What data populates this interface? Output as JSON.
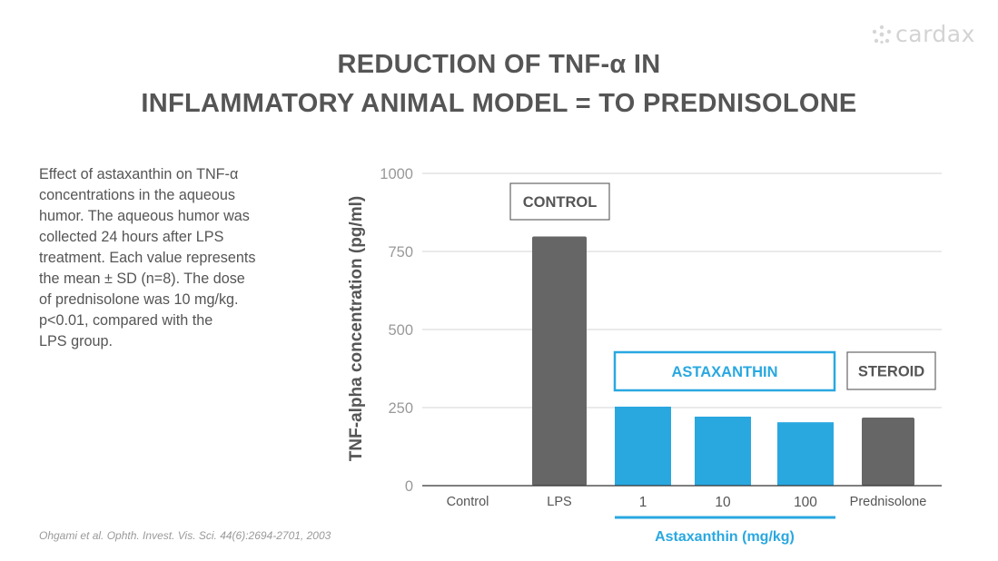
{
  "logo": {
    "text": "cardax"
  },
  "title": {
    "line1": "REDUCTION OF TNF-α IN",
    "line2": "INFLAMMATORY ANIMAL MODEL = TO PREDNISOLONE"
  },
  "description": [
    "Effect of astaxanthin on TNF-α",
    "concentrations in the aqueous",
    "humor. The aqueous humor was",
    "collected 24 hours after LPS",
    "treatment. Each value represents",
    "the mean ± SD (n=8). The dose",
    "of prednisolone was 10 mg/kg.",
    "p<0.01, compared with the",
    "LPS group."
  ],
  "citation": "Ohgami et al. Ophth. Invest. Vis. Sci. 44(6):2694-2701, 2003",
  "colors": {
    "gray": "#666666",
    "blue": "#29a8e0",
    "text": "#555555",
    "grid": "#dddddd"
  },
  "chart_data": {
    "type": "bar",
    "title": "",
    "ylabel": "TNF-alpha concentration (pg/ml)",
    "xlabel": "Astaxanthin (mg/kg)",
    "ylim": [
      0,
      1000
    ],
    "yticks": [
      "0",
      "250",
      "500",
      "750",
      "1000"
    ],
    "ytick_values": [
      0,
      250,
      500,
      750,
      1000
    ],
    "grid": true,
    "categories": [
      "Control",
      "LPS",
      "1",
      "10",
      "100",
      "Prednisolone"
    ],
    "values": [
      0,
      798,
      253,
      221,
      203,
      218
    ],
    "bar_colors": [
      "#666666",
      "#666666",
      "#29a8e0",
      "#29a8e0",
      "#29a8e0",
      "#666666"
    ],
    "annotations": [
      {
        "text": "CONTROL",
        "style": "gray-box",
        "over": [
          "LPS"
        ]
      },
      {
        "text": "ASTAXANTHIN",
        "style": "blue-box",
        "over": [
          "1",
          "10",
          "100"
        ]
      },
      {
        "text": "STEROID",
        "style": "gray-box",
        "over": [
          "Prednisolone"
        ]
      }
    ]
  }
}
